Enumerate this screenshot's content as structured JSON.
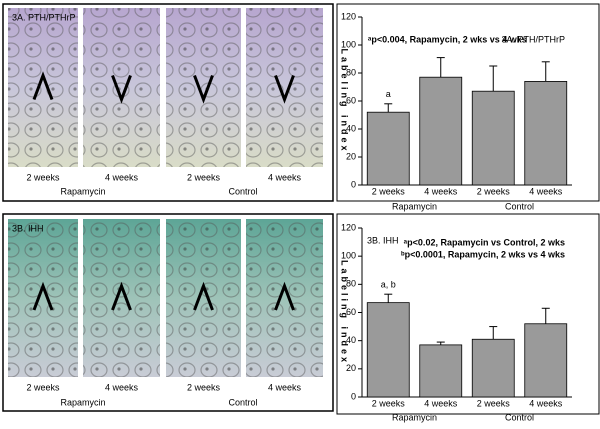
{
  "chart_data": [
    {
      "type": "bar",
      "title": "3A. PTH/PTHrP",
      "ylabel": "Labeling index",
      "notes": [
        "ᵃp<0.004, Rapamycin, 2 wks vs 4 wks"
      ],
      "categories": [
        "2 weeks",
        "4 weeks",
        "2 weeks",
        "4 weeks"
      ],
      "groups": [
        "Rapamycin",
        "Control"
      ],
      "values": [
        52,
        77,
        67,
        74
      ],
      "errors": [
        6,
        14,
        18,
        14
      ],
      "bar_labels": [
        "a",
        null,
        null,
        null
      ],
      "color": "#9a9a9a",
      "ylim": [
        0,
        120
      ],
      "yticks": [
        0,
        20,
        40,
        60,
        80,
        100,
        120
      ]
    },
    {
      "type": "bar",
      "title": "3B. IHH",
      "ylabel": "Labeling index",
      "notes": [
        "ᵃp<0.02, Rapamycin vs Control, 2 wks",
        "ᵇp<0.0001, Rapamycin, 2 wks vs 4 wks"
      ],
      "categories": [
        "2 weeks",
        "4 weeks",
        "2 weeks",
        "4 weeks"
      ],
      "groups": [
        "Rapamycin",
        "Control"
      ],
      "values": [
        67,
        37,
        41,
        52
      ],
      "errors": [
        6,
        2,
        9,
        11
      ],
      "bar_labels": [
        "a, b",
        null,
        null,
        null
      ],
      "color": "#9a9a9a",
      "ylim": [
        0,
        120
      ],
      "yticks": [
        0,
        20,
        40,
        60,
        80,
        100,
        120
      ]
    }
  ],
  "image_panels": [
    {
      "label": "3A. PTH/PTHrP",
      "captions": [
        "2 weeks",
        "4 weeks",
        "2 weeks",
        "4 weeks"
      ],
      "groups": [
        "Rapamycin",
        "Control"
      ]
    },
    {
      "label": "3B. IHH",
      "captions": [
        "2 weeks",
        "4 weeks",
        "2 weeks",
        "4 weeks"
      ],
      "groups": [
        "Rapamycin",
        "Control"
      ]
    }
  ]
}
